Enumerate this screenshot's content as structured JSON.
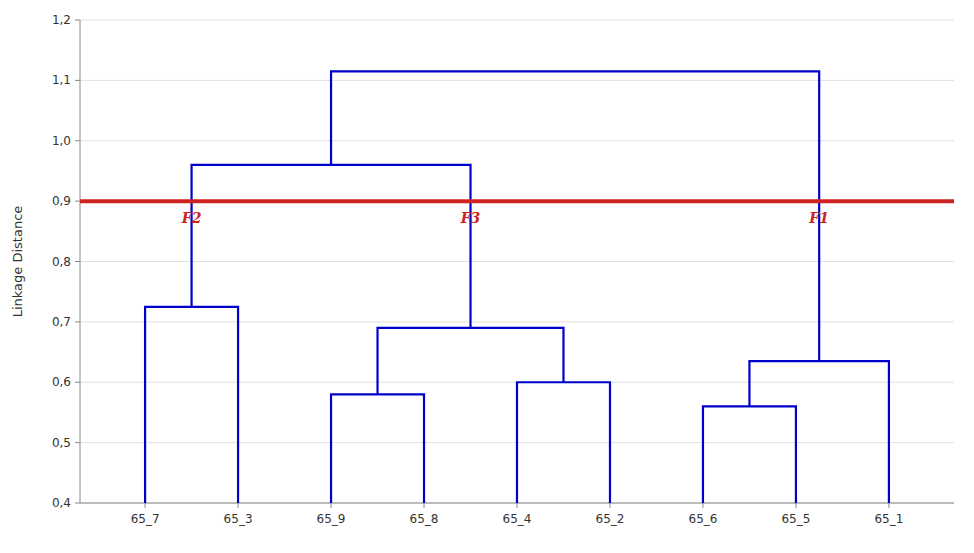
{
  "chart_data": {
    "type": "dendrogram",
    "categories": [
      "65_7",
      "65_3",
      "65_9",
      "65_8",
      "65_4",
      "65_2",
      "65_6",
      "65_5",
      "65_1"
    ],
    "merges": [
      {
        "children": [
          0,
          1
        ],
        "height": 0.725
      },
      {
        "children": [
          2,
          3
        ],
        "height": 0.58
      },
      {
        "children": [
          4,
          5
        ],
        "height": 0.6
      },
      {
        "children": [
          10,
          11
        ],
        "height": 0.69
      },
      {
        "children": [
          6,
          7
        ],
        "height": 0.56
      },
      {
        "children": [
          13,
          8
        ],
        "height": 0.635
      },
      {
        "children": [
          9,
          12
        ],
        "height": 0.96
      },
      {
        "children": [
          15,
          14
        ],
        "height": 1.115
      }
    ],
    "color": "#0000cc",
    "threshold": {
      "value": 0.9,
      "color": "#cc2222"
    },
    "annotations": [
      {
        "text": "F2",
        "node": 9
      },
      {
        "text": "F3",
        "node": 12
      },
      {
        "text": "F1",
        "node": 14
      }
    ],
    "y_label": "Linkage Distance",
    "ylim": [
      0.4,
      1.2
    ],
    "yticks": [
      {
        "value": 0.4,
        "label": "0,4"
      },
      {
        "value": 0.5,
        "label": "0,5"
      },
      {
        "value": 0.6,
        "label": "0,6"
      },
      {
        "value": 0.7,
        "label": "0,7"
      },
      {
        "value": 0.8,
        "label": "0,8"
      },
      {
        "value": 0.9,
        "label": "0,9"
      },
      {
        "value": 1.0,
        "label": "1,0"
      },
      {
        "value": 1.1,
        "label": "1,1"
      },
      {
        "value": 1.2,
        "label": "1,2"
      }
    ],
    "grid": true
  }
}
